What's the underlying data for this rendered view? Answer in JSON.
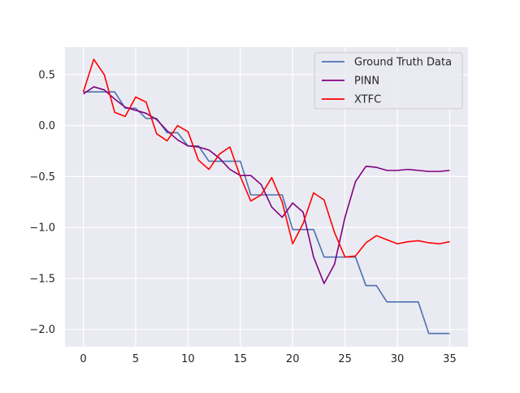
{
  "chart_data": {
    "type": "line",
    "title": "",
    "xlabel": "",
    "ylabel": "",
    "xlim": [
      -1.75,
      36.75
    ],
    "ylim": [
      -2.17,
      0.77
    ],
    "xticks": [
      0,
      5,
      10,
      15,
      20,
      25,
      30,
      35
    ],
    "yticks": [
      0.5,
      0.0,
      -0.5,
      -1.0,
      -1.5,
      -2.0
    ],
    "ytick_labels": [
      "0.5",
      "0.0",
      "−0.5",
      "−1.0",
      "−1.5",
      "−2.0"
    ],
    "grid": true,
    "legend_position": "top-right",
    "x": [
      0,
      1,
      2,
      3,
      4,
      5,
      6,
      7,
      8,
      9,
      10,
      11,
      12,
      13,
      14,
      15,
      16,
      17,
      18,
      19,
      20,
      21,
      22,
      23,
      24,
      25,
      26,
      27,
      28,
      29,
      30,
      31,
      32,
      33,
      34,
      35
    ],
    "series": [
      {
        "name": "Ground Truth Data",
        "color": "#4c72b0",
        "values": [
          0.33,
          0.33,
          0.33,
          0.33,
          0.17,
          0.17,
          0.07,
          0.07,
          -0.07,
          -0.07,
          -0.2,
          -0.2,
          -0.35,
          -0.35,
          -0.35,
          -0.35,
          -0.68,
          -0.68,
          -0.68,
          -0.68,
          -1.02,
          -1.02,
          -1.02,
          -1.29,
          -1.29,
          -1.29,
          -1.29,
          -1.57,
          -1.57,
          -1.73,
          -1.73,
          -1.73,
          -1.73,
          -2.04,
          -2.04,
          -2.04
        ]
      },
      {
        "name": "PINN",
        "color": "#800080",
        "values": [
          0.31,
          0.38,
          0.35,
          0.26,
          0.18,
          0.15,
          0.12,
          0.06,
          -0.05,
          -0.14,
          -0.2,
          -0.21,
          -0.24,
          -0.32,
          -0.43,
          -0.49,
          -0.49,
          -0.58,
          -0.8,
          -0.9,
          -0.76,
          -0.85,
          -1.29,
          -1.55,
          -1.36,
          -0.9,
          -0.55,
          -0.4,
          -0.41,
          -0.44,
          -0.44,
          -0.43,
          -0.44,
          -0.45,
          -0.45,
          -0.44
        ]
      },
      {
        "name": "XTFC",
        "color": "#ff0000",
        "values": [
          0.33,
          0.65,
          0.5,
          0.13,
          0.09,
          0.28,
          0.23,
          -0.08,
          -0.15,
          0.0,
          -0.06,
          -0.34,
          -0.43,
          -0.28,
          -0.21,
          -0.5,
          -0.74,
          -0.68,
          -0.51,
          -0.75,
          -1.16,
          -0.96,
          -0.66,
          -0.73,
          -1.05,
          -1.29,
          -1.28,
          -1.15,
          -1.08,
          -1.12,
          -1.16,
          -1.14,
          -1.13,
          -1.15,
          -1.16,
          -1.14
        ]
      }
    ]
  }
}
